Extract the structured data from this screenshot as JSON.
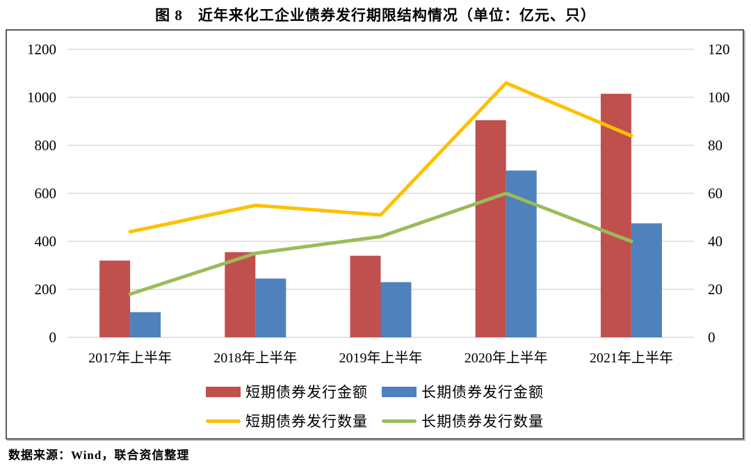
{
  "figure": {
    "title": "图 8　近年来化工企业债券发行期限结构情况（单位：亿元、只）",
    "source": "数据来源：Wind，联合资信整理"
  },
  "chart_data": {
    "type": "bar",
    "subtype": "bar-line-combo",
    "title": "图 8　近年来化工企业债券发行期限结构情况（单位：亿元、只）",
    "categories": [
      "2017年上半年",
      "2018年上半年",
      "2019年上半年",
      "2020年上半年",
      "2021年上半年"
    ],
    "series": [
      {
        "name": "短期债券发行金额",
        "type": "bar",
        "axis": "left",
        "color": "#C0504D",
        "values": [
          320,
          355,
          340,
          905,
          1015
        ]
      },
      {
        "name": "长期债券发行金额",
        "type": "bar",
        "axis": "left",
        "color": "#4F81BD",
        "values": [
          105,
          245,
          230,
          695,
          475
        ]
      },
      {
        "name": "短期债券发行数量",
        "type": "line",
        "axis": "right",
        "color": "#FFC000",
        "values": [
          44,
          55,
          51,
          106,
          84
        ]
      },
      {
        "name": "长期债券发行数量",
        "type": "line",
        "axis": "right",
        "color": "#9BBB59",
        "values": [
          18,
          35,
          42,
          60,
          40
        ]
      }
    ],
    "left_axis": {
      "range": [
        0,
        1200
      ],
      "ticks": [
        "0",
        "200",
        "400",
        "600",
        "800",
        "1000",
        "1200"
      ]
    },
    "right_axis": {
      "range": [
        0,
        120
      ],
      "ticks": [
        "0",
        "20",
        "40",
        "60",
        "80",
        "100",
        "120"
      ]
    },
    "grid": true,
    "gridline_color": "#D9D9D9",
    "border_color": "#595959",
    "legend_position": "bottom",
    "xlabel": "",
    "ylabel_left": "亿元",
    "ylabel_right": "只"
  }
}
